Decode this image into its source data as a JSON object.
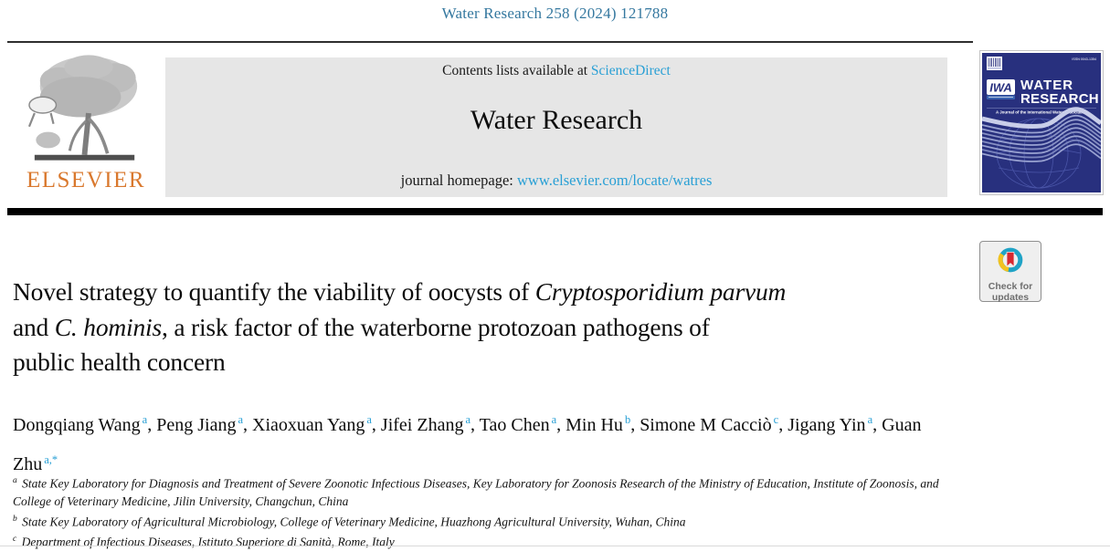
{
  "page": {
    "header_label": "Water Research 258 (2024) 121788"
  },
  "masthead": {
    "publisher": "ELSEVIER",
    "contents_prefix": "Contents lists available at ",
    "contents_link": "ScienceDirect",
    "journal_title": "Water Research",
    "homepage_prefix": "journal homepage: ",
    "homepage_link": "www.elsevier.com/locate/watres"
  },
  "cover": {
    "issn": "ISSN 0043-1354",
    "iwa_logo": "IWA",
    "title_line1": "WATER",
    "title_line2": "RESEARCH",
    "subtitle": "A Journal of the International Water Association"
  },
  "badge": {
    "line1": "Check for",
    "line2": "updates"
  },
  "article": {
    "title_lines": [
      [
        {
          "text": "Novel strategy to quantify the viability of oocysts of ",
          "italic": false
        },
        {
          "text": "Cryptosporidium parvum",
          "italic": true
        }
      ],
      [
        {
          "text": "and ",
          "italic": false
        },
        {
          "text": "C. hominis",
          "italic": true
        },
        {
          "text": ", a risk factor of the waterborne protozoan pathogens of",
          "italic": false
        }
      ],
      [
        {
          "text": "public health concern",
          "italic": false
        }
      ]
    ],
    "authors": [
      {
        "name": "Dongqiang Wang",
        "sup": "a"
      },
      {
        "name": "Peng Jiang",
        "sup": "a"
      },
      {
        "name": "Xiaoxuan Yang",
        "sup": "a"
      },
      {
        "name": "Jifei Zhang",
        "sup": "a"
      },
      {
        "name": "Tao Chen",
        "sup": "a"
      },
      {
        "name": "Min Hu",
        "sup": "b"
      },
      {
        "name": "Simone M Cacciò",
        "sup": "c"
      },
      {
        "name": "Jigang Yin",
        "sup": "a"
      },
      {
        "name": "Guan Zhu",
        "sup": "a,*"
      }
    ],
    "affiliations": [
      {
        "sup": "a",
        "text": "State Key Laboratory for Diagnosis and Treatment of Severe Zoonotic Infectious Diseases, Key Laboratory for Zoonosis Research of the Ministry of Education, Institute of Zoonosis, and College of Veterinary Medicine, Jilin University, Changchun, China"
      },
      {
        "sup": "b",
        "text": "State Key Laboratory of Agricultural Microbiology, College of Veterinary Medicine, Huazhong Agricultural University, Wuhan, China"
      },
      {
        "sup": "c",
        "text": "Department of Infectious Diseases, Istituto Superiore di Sanità, Rome, Italy"
      }
    ]
  },
  "colors": {
    "header_blue": "#35789F",
    "link_blue": "#2AA0D5",
    "elsevier_orange": "#D9782D",
    "cover_navy": "#28307E",
    "cover_wave": "#9AA3D2",
    "badge_teal": "#1FA3C6",
    "badge_yellow": "#F2C21F",
    "badge_red": "#D7282F",
    "masthead_gray": "#E6E6E6"
  }
}
